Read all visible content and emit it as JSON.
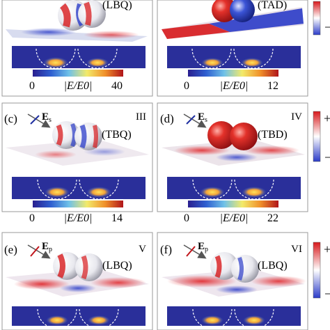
{
  "panels": [
    {
      "letter": "",
      "roman": "",
      "mode": "(LBQ)",
      "pol": "",
      "pol_sub": "",
      "scale_min": "0",
      "scale_label": "|E/E0|",
      "scale_max": "40"
    },
    {
      "letter": "",
      "roman": "",
      "mode": "(TAD)",
      "pol": "",
      "pol_sub": "",
      "scale_min": "0",
      "scale_label": "|E/E0|",
      "scale_max": "12"
    },
    {
      "letter": "(c)",
      "roman": "III",
      "mode": "(TBQ)",
      "pol": "E",
      "pol_sub": "s",
      "scale_min": "0",
      "scale_label": "|E/E0|",
      "scale_max": "14"
    },
    {
      "letter": "(d)",
      "roman": "IV",
      "mode": "(TBD)",
      "pol": "E",
      "pol_sub": "s",
      "scale_min": "0",
      "scale_label": "|E/E0|",
      "scale_max": "22"
    },
    {
      "letter": "(e)",
      "roman": "V",
      "mode": "(LBQ)",
      "pol": "E",
      "pol_sub": "p",
      "scale_min": "",
      "scale_label": "",
      "scale_max": ""
    },
    {
      "letter": "(f)",
      "roman": "VI",
      "mode": "(LBQ)",
      "pol": "E",
      "pol_sub": "p",
      "scale_min": "",
      "scale_label": "",
      "scale_max": ""
    }
  ],
  "colorbar_labels": {
    "plus": "+",
    "minus": "−"
  },
  "colors": {
    "red": "#d7191c",
    "blue": "#2b3cc8",
    "pol_s": "#1f2fa0",
    "pol_p": "#c0141a"
  }
}
